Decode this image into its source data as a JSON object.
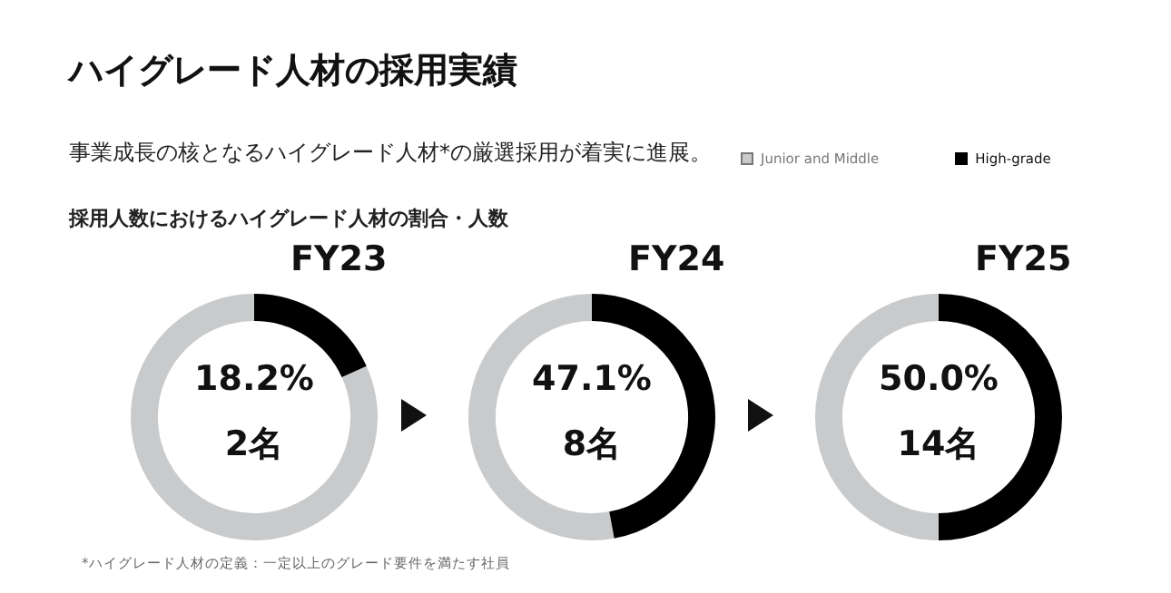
{
  "chart_data": [
    {
      "type": "other",
      "title": "ハイグレード人材の採用実績",
      "subtitle": "事業成長の核となるハイグレード人材*の厳選採用が着実に進展。",
      "annotations": [
        "採用人数におけるハイグレード人材の割合・人数",
        "*ハイグレード人材の定義：一定以上のグレード要件を満たす社員"
      ]
    },
    {
      "type": "donut",
      "title": "FY23",
      "categories": [
        null,
        null
      ],
      "values": [
        81.8,
        18.2
      ],
      "colors": [
        "#c8cacc",
        "#000000"
      ],
      "annotations": [
        "18.2%",
        "2名"
      ]
    },
    {
      "type": "donut",
      "title": "FY24",
      "categories": [
        null,
        null
      ],
      "values": [
        52.9,
        47.1
      ],
      "colors": [
        "#c8cacc",
        "#000000"
      ],
      "annotations": [
        "47.1%",
        "8名"
      ]
    },
    {
      "type": "donut",
      "title": "FY25",
      "categories": [
        "Junior and Middle",
        "High-grade"
      ],
      "values": [
        50.0,
        50.0
      ],
      "colors": [
        "#c8cacc",
        "#000000"
      ],
      "annotations": [
        "50.0%",
        "14名"
      ],
      "legend": "top left"
    }
  ]
}
